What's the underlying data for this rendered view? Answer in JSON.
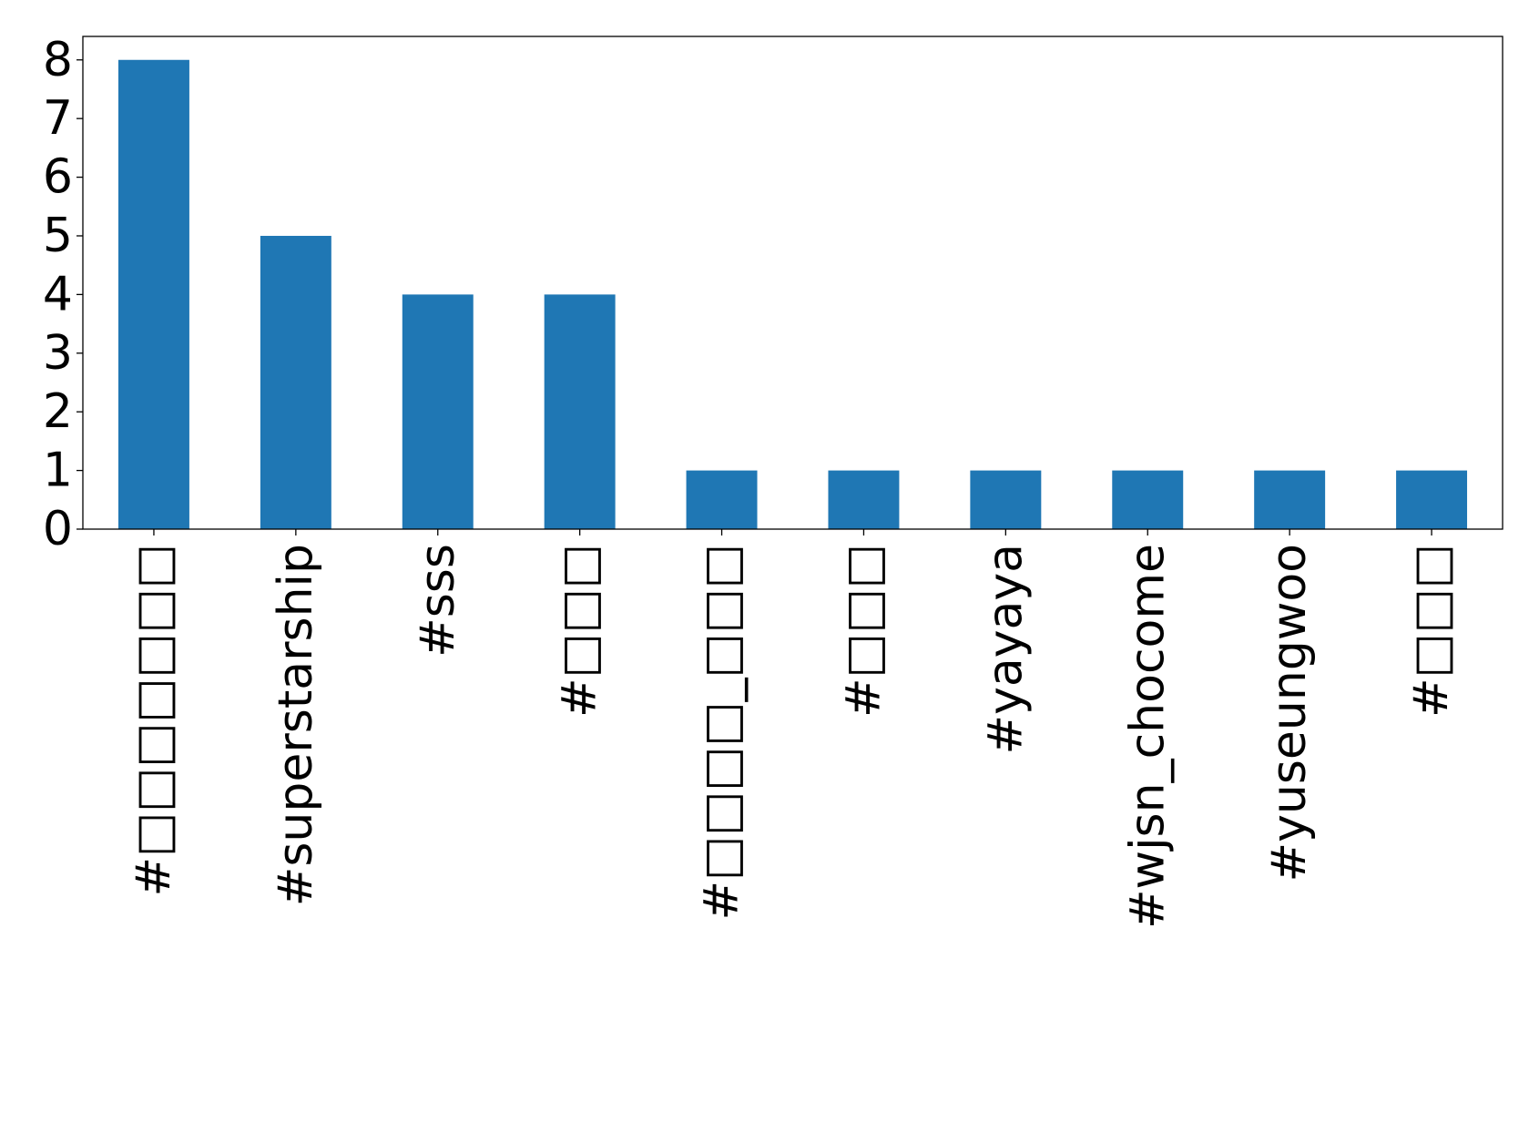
{
  "chart_data": {
    "type": "bar",
    "title": "",
    "xlabel": "",
    "ylabel": "",
    "categories": [
      "#□□□□□□□",
      "#superstarship",
      "#sss",
      "#□□□",
      "#□□□□_□□□",
      "#□□□",
      "#yayaya",
      "#wjsn_chocome",
      "#yuseungwoo",
      "#□□□"
    ],
    "values": [
      8,
      5,
      4,
      4,
      1,
      1,
      1,
      1,
      1,
      1
    ],
    "ylim": [
      0,
      8.4
    ],
    "yticks": [
      0,
      1,
      2,
      3,
      4,
      5,
      6,
      7,
      8
    ],
    "bar_color": "#1f77b4",
    "grid": false,
    "legend": "none"
  }
}
